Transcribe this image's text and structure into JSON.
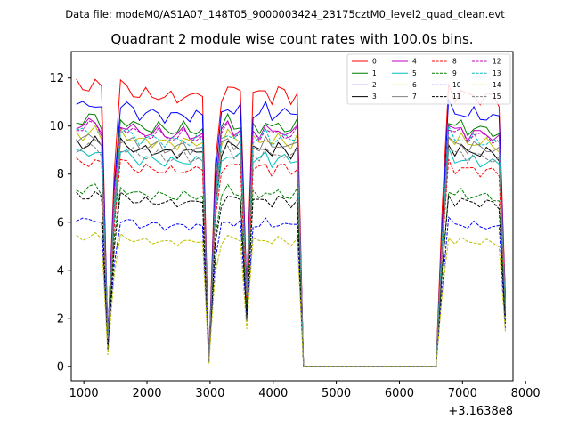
{
  "figure": {
    "suptitle": "Data file: modeM0/AS1A07_148T05_9000003424_23175cztM0_level2_quad_clean.evt",
    "title": "Quadrant 2 module wise count rates with 100.0s bins.",
    "x_offset_label": "+3.1638e8"
  },
  "chart_data": {
    "type": "line",
    "title": "Quadrant 2 module wise count rates with 100.0s bins.",
    "xlabel": "",
    "ylabel": "",
    "x_offset": 316380000,
    "xlim": [
      800,
      7800
    ],
    "ylim": [
      -0.6,
      13.1
    ],
    "xticks": [
      1000,
      2000,
      3000,
      4000,
      5000,
      6000,
      7000,
      8000
    ],
    "xtick_labels": [
      "1000",
      "2000",
      "3000",
      "4000",
      "5000",
      "6000",
      "7000",
      "8000"
    ],
    "yticks": [
      0,
      2,
      4,
      6,
      8,
      10,
      12
    ],
    "ytick_labels": [
      "0",
      "2",
      "4",
      "6",
      "8",
      "10",
      "12"
    ],
    "grid": false,
    "legend_position": "top-right",
    "legend_columns": 4,
    "shape": {
      "seg1_x": [
        880,
        980,
        1080,
        1180,
        1280,
        1380,
        1480,
        1580,
        1680,
        1780,
        1880,
        1980,
        2080,
        2180,
        2280,
        2380,
        2480,
        2580,
        2680,
        2780
      ],
      "seg1_bins": [
        1.0,
        0.99,
        1.0,
        1.01,
        0.98,
        0.11,
        0.7,
        1.0,
        0.99,
        0.98,
        0.96,
        0.97,
        0.96,
        0.97,
        0.95,
        0.96,
        0.95,
        0.97,
        0.95,
        0.96
      ],
      "dip1_x": [
        2880,
        2980,
        3080
      ],
      "dip1": [
        0.96,
        0.02,
        0.72
      ],
      "seg2_x": [
        3180,
        3280,
        3380,
        3480,
        3580
      ],
      "seg2_bins": [
        0.96,
        1.0,
        0.97,
        0.98,
        0.3
      ],
      "seg3_x": [
        3680,
        3780,
        3880,
        3980,
        4080,
        4180,
        4280,
        4380,
        4480
      ],
      "seg3_bins": [
        0.97,
        0.96,
        0.99,
        0.95,
        0.98,
        0.97,
        0.95,
        0.98,
        0.0
      ],
      "flat_x": [
        4580,
        6580
      ],
      "seg4_x": [
        6680,
        6780,
        6880,
        6980,
        7080,
        7180,
        7280,
        7380,
        7480,
        7580,
        7680
      ],
      "seg4_bins": [
        0.55,
        1.0,
        0.96,
        0.98,
        0.95,
        0.97,
        0.95,
        0.96,
        0.95,
        0.94,
        0.26
      ]
    },
    "series": [
      {
        "name": "0",
        "color": "#ff0000",
        "dash": "solid",
        "level": 11.7
      },
      {
        "name": "1",
        "color": "#008000",
        "dash": "solid",
        "level": 10.3
      },
      {
        "name": "2",
        "color": "#0000ff",
        "dash": "solid",
        "level": 10.9
      },
      {
        "name": "3",
        "color": "#000000",
        "dash": "solid",
        "level": 9.3
      },
      {
        "name": "4",
        "color": "#c000c0",
        "dash": "solid",
        "level": 10.1
      },
      {
        "name": "5",
        "color": "#00bfbf",
        "dash": "solid",
        "level": 8.9
      },
      {
        "name": "6",
        "color": "#bfbf00",
        "dash": "solid",
        "level": 9.7
      },
      {
        "name": "7",
        "color": "#808080",
        "dash": "solid",
        "level": 9.5
      },
      {
        "name": "8",
        "color": "#ff0000",
        "dash": "dashed",
        "level": 8.5
      },
      {
        "name": "9",
        "color": "#008000",
        "dash": "dashed",
        "level": 7.4
      },
      {
        "name": "10",
        "color": "#0000ff",
        "dash": "dashed",
        "level": 6.1
      },
      {
        "name": "11",
        "color": "#000000",
        "dash": "dashed",
        "level": 7.1
      },
      {
        "name": "12",
        "color": "#c000c0",
        "dash": "dashed",
        "level": 10.0
      },
      {
        "name": "13",
        "color": "#00bfbf",
        "dash": "dashed",
        "level": 9.8
      },
      {
        "name": "14",
        "color": "#bfbf00",
        "dash": "dashed",
        "level": 5.4
      },
      {
        "name": "15",
        "color": "#808080",
        "dash": "dashed",
        "level": 9.1
      }
    ]
  }
}
